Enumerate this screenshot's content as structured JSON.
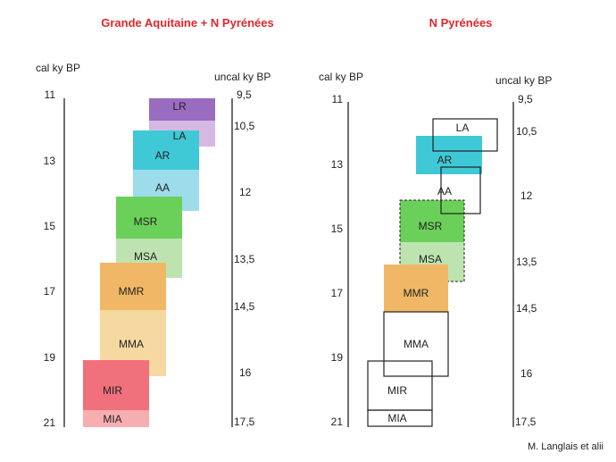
{
  "left_panel": {
    "title": "Grande Aquitaine + N Pyrénées",
    "cal_unit": "cal ky BP",
    "uncal_unit": "uncal ky BP",
    "cal_ticks": [
      "11",
      "13",
      "15",
      "17",
      "19",
      "21"
    ],
    "uncal_ticks": [
      "9,5",
      "10,5",
      "12",
      "13,5",
      "14,5",
      "16",
      "17,5"
    ],
    "phases": [
      {
        "label": "LR",
        "color": "#9a6cbf"
      },
      {
        "label": "LA",
        "color": "#d6b9e3"
      },
      {
        "label": "AR",
        "color": "#3fc9d6"
      },
      {
        "label": "AA",
        "color": "#9ddcea"
      },
      {
        "label": "MSR",
        "color": "#6bd05a"
      },
      {
        "label": "MSA",
        "color": "#bde4b0"
      },
      {
        "label": "MMR",
        "color": "#f0b866"
      },
      {
        "label": "MMA",
        "color": "#f5d9a0"
      },
      {
        "label": "MIR",
        "color": "#f0717b"
      },
      {
        "label": "MIA",
        "color": "#f7aeb1"
      }
    ]
  },
  "right_panel": {
    "title": "N Pyrénées",
    "cal_unit": "cal ky BP",
    "uncal_unit": "uncal ky BP",
    "cal_ticks": [
      "11",
      "13",
      "15",
      "17",
      "19",
      "21"
    ],
    "uncal_ticks": [
      "9,5",
      "10,5",
      "12",
      "13,5",
      "14,5",
      "16",
      "17,5"
    ],
    "phases": [
      {
        "label": "LA",
        "style": "outline"
      },
      {
        "label": "AR",
        "style": "filled",
        "color": "#3fc9d6"
      },
      {
        "label": "AA",
        "style": "outline"
      },
      {
        "label": "MSR",
        "style": "filled-dashed",
        "color": "#6bd05a"
      },
      {
        "label": "MSA",
        "style": "filled-dashed",
        "color": "#bde4b0"
      },
      {
        "label": "MMR",
        "style": "filled",
        "color": "#f0b866"
      },
      {
        "label": "MMA",
        "style": "outline"
      },
      {
        "label": "MIR",
        "style": "outline"
      },
      {
        "label": "MIA",
        "style": "outline"
      }
    ]
  },
  "credit": "M. Langlais et alii"
}
